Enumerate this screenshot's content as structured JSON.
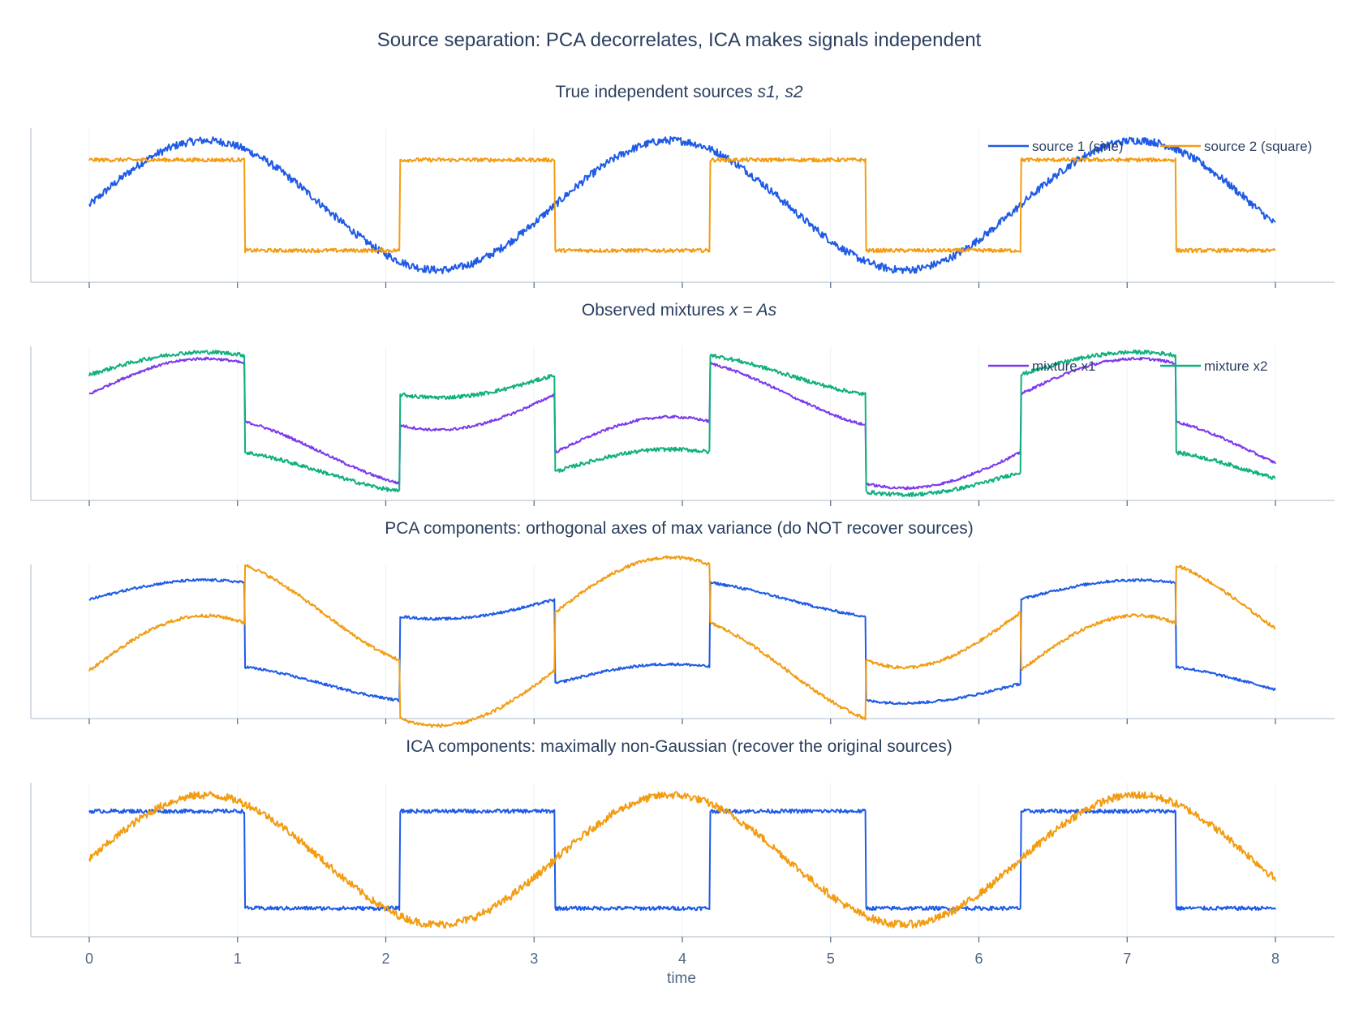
{
  "title": "Source separation: PCA decorrelates, ICA makes signals independent",
  "xlabel": "time",
  "x_ticks": [
    "0",
    "1",
    "2",
    "3",
    "4",
    "5",
    "6",
    "7",
    "8"
  ],
  "colors": {
    "blue": "#1f5be6",
    "orange": "#f39c12",
    "purple": "#7c3aed",
    "green": "#10b07f",
    "axis": "#c8d0dc",
    "grid": "#eef1f6"
  },
  "chart_data": [
    {
      "type": "line",
      "title_main": "True independent sources",
      "title_math": "s1, s2",
      "xlim": [
        0,
        8
      ],
      "legend": "top-right",
      "series": [
        {
          "name": "source 1 (sine)",
          "color": "blue",
          "kind": "sine",
          "amplitude": 1.0,
          "period": 3.14,
          "noise": 0.06
        },
        {
          "name": "source 2 (square)",
          "color": "orange",
          "kind": "square",
          "amplitude": 0.7,
          "half_period": 1.047,
          "noise": 0.03
        }
      ]
    },
    {
      "type": "line",
      "title_main": "Observed mixtures",
      "title_math": "x = As",
      "xlim": [
        0,
        8
      ],
      "legend": "top-right",
      "series": [
        {
          "name": "mixture x1",
          "color": "purple",
          "kind": "mix",
          "a_sine": 0.55,
          "a_square": 0.45,
          "noise": 0.02
        },
        {
          "name": "mixture x2",
          "color": "green",
          "kind": "mix",
          "a_sine": 0.35,
          "a_square": 0.75,
          "noise": 0.03
        }
      ]
    },
    {
      "type": "line",
      "title_main": "PCA components: orthogonal axes of max variance (do NOT recover sources)",
      "xlim": [
        0,
        8
      ],
      "series": [
        {
          "name": "",
          "color": "blue",
          "kind": "mix",
          "a_sine": 0.3,
          "a_square": 0.65,
          "noise": 0.02
        },
        {
          "name": "",
          "color": "orange",
          "kind": "mix",
          "a_sine": 0.85,
          "a_square": -0.45,
          "noise": 0.025
        }
      ]
    },
    {
      "type": "line",
      "title_main": "ICA components: maximally non-Gaussian (recover the original sources)",
      "xlim": [
        0,
        8
      ],
      "series": [
        {
          "name": "",
          "color": "blue",
          "kind": "square",
          "amplitude": 0.75,
          "half_period": 1.047,
          "noise": 0.03
        },
        {
          "name": "",
          "color": "orange",
          "kind": "sine",
          "amplitude": 1.0,
          "period": 3.14,
          "noise": 0.06
        }
      ]
    }
  ]
}
